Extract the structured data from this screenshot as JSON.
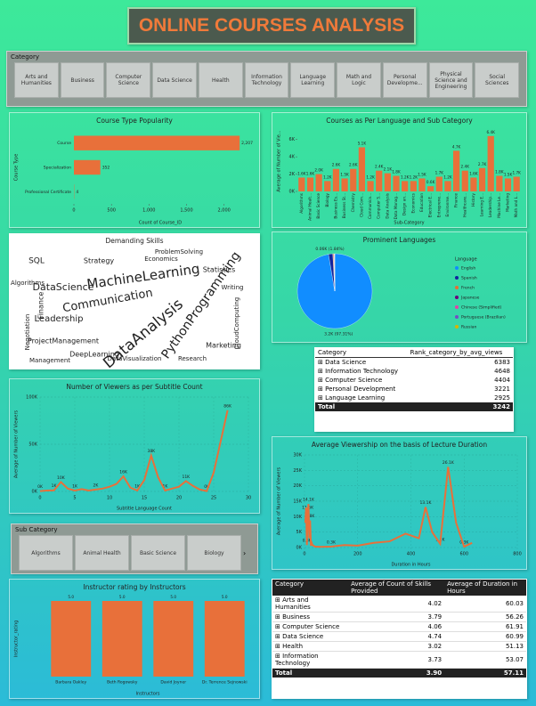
{
  "header": {
    "title": "ONLINE COURSES ANALYSIS"
  },
  "category_slicer": {
    "label": "Category",
    "items": [
      "Arts and Humanities",
      "Business",
      "Computer Science",
      "Data Science",
      "Health",
      "Information Technology",
      "Language Learning",
      "Math and Logic",
      "Personal Developme...",
      "Physical Science and Engineering",
      "Social Sciences"
    ]
  },
  "sub_category_slicer": {
    "label": "Sub Category",
    "items": [
      "Algorithms",
      "Animal Health",
      "Basic Science",
      "Biology"
    ]
  },
  "word_cloud": {
    "title": "Demanding Skills",
    "words": [
      "MachineLearning",
      "DataAnalysis",
      "PythonProgramming",
      "DataScience",
      "Communication",
      "Leadership",
      "ProjectManagement",
      "Statistics",
      "DeepLearning",
      "SQL",
      "Marketing",
      "Finance",
      "Research",
      "Strategy",
      "ProblemSolving",
      "CloudComputing",
      "DataVisualization",
      "Management",
      "Negotiation",
      "Writing",
      "Economics",
      "Algorithms"
    ]
  },
  "chart_data": [
    {
      "type": "bar",
      "orientation": "horizontal",
      "title": "Course Type Popularity",
      "x_label": "Count of Course_ID",
      "y_label": "Course Type",
      "categories": [
        "Course",
        "Specialization",
        "Professional Certificate"
      ],
      "values": [
        2207,
        352,
        4
      ],
      "value_labels": [
        "2,207",
        "352",
        "4"
      ],
      "color": "#e8703a",
      "xlim": [
        0,
        2300
      ],
      "xticks": [
        0,
        500,
        {
          "value": 1000,
          "label": "1,000"
        },
        {
          "value": 1500,
          "label": "1,500"
        },
        {
          "value": 2000,
          "label": "2,000"
        }
      ],
      "grid": false
    },
    {
      "type": "bar",
      "orientation": "vertical",
      "title": "Courses as Per Language and Sub Category",
      "x_label": "Sub-Category",
      "y_label": "Average of Number of Vie...",
      "categories": [
        "Algorithms",
        "Animal Healt...",
        "Basic Science",
        "Biology",
        "Business Es...",
        "Business St...",
        "Chemistry",
        "Cloud Com...",
        "Communica...",
        "Computer S...",
        "Data Analysis",
        "Data Manag...",
        "Design an...",
        "Economics",
        "Education",
        "Electrical E...",
        "Entreprene...",
        "Environme...",
        "Finance",
        "Healthcare...",
        "History",
        "Learning E...",
        "Leadership...",
        "Machine Le...",
        "Marketing",
        "Math and L..."
      ],
      "values": [
        1600,
        1600,
        2000,
        1200,
        2600,
        1500,
        2600,
        5100,
        1200,
        2400,
        2100,
        1800,
        1200,
        1200,
        1500,
        600,
        1700,
        1200,
        4700,
        2400,
        1600,
        2700,
        6400,
        1800,
        1500,
        1700
      ],
      "value_labels": [
        "1.6K",
        "1.6K",
        "2.0K",
        "1.2K",
        "2.6K",
        "1.5K",
        "2.6K",
        "5.1K",
        "1.2K",
        "2.4K",
        "2.1K",
        "1.8K",
        "1.2K",
        "1.2K",
        "1.5K",
        "0.6K",
        "1.7K",
        "1.2K",
        "4.7K",
        "2.4K",
        "1.6K",
        "2.7K",
        "6.4K",
        "1.8K",
        "1.5K",
        "1.7K"
      ],
      "color": "#e8703a",
      "ylim": [
        0,
        7000
      ],
      "yticks": [
        {
          "value": 0,
          "label": "0K"
        },
        {
          "value": 2000,
          "label": "2K"
        },
        {
          "value": 4000,
          "label": "4K"
        },
        {
          "value": 6000,
          "label": "6K"
        }
      ],
      "grid": false
    },
    {
      "type": "pie",
      "title": "Prominent Languages",
      "legend_title": "Language",
      "legend": "right",
      "categories": [
        "English",
        "Spanish",
        "French",
        "Japanese",
        "Chinese (Simplified)",
        "Portuguese (Brazilian)",
        "Russian"
      ],
      "values": [
        3155,
        60,
        12,
        6,
        4,
        3,
        2
      ],
      "value_labels": [
        "3.2K (97.31%)",
        "0.06K (1.84%)",
        null,
        null,
        null,
        null,
        null
      ],
      "colors": [
        "#118dff",
        "#12239e",
        "#e66c37",
        "#6b007b",
        "#e044a7",
        "#744ec2",
        "#d9b300"
      ]
    },
    {
      "type": "line",
      "title": "Number of Viewers as per Subtitle Count",
      "x_label": "Subtitle Language Count",
      "y_label": "Average of Number of Viewers",
      "x": [
        0,
        1,
        2,
        3,
        4,
        5,
        6,
        7,
        8,
        9,
        10,
        11,
        12,
        13,
        14,
        15,
        16,
        17,
        18,
        19,
        20,
        21,
        22,
        23,
        24,
        25,
        27
      ],
      "values": [
        400,
        1000,
        1200,
        10000,
        3000,
        1000,
        2500,
        1000,
        2000,
        3000,
        5000,
        8000,
        16000,
        4000,
        1000,
        12000,
        38000,
        15000,
        1000,
        3000,
        5000,
        11000,
        6000,
        2000,
        400,
        20000,
        86000
      ],
      "value_labels": [
        "0K",
        null,
        "1K",
        "10K",
        null,
        "1K",
        null,
        null,
        "2K",
        null,
        null,
        null,
        "16K",
        null,
        "1K",
        null,
        "38K",
        null,
        "1K",
        null,
        null,
        "11K",
        null,
        null,
        "0K",
        null,
        "86K"
      ],
      "color": "#e8703a",
      "xlim": [
        0,
        30
      ],
      "xticks": [
        0,
        5,
        10,
        15,
        20,
        25,
        30
      ],
      "ylim": [
        0,
        100000
      ],
      "yticks": [
        {
          "value": 0,
          "label": "0K"
        },
        {
          "value": 50000,
          "label": "50K"
        },
        {
          "value": 100000,
          "label": "100K"
        }
      ],
      "grid": true
    },
    {
      "type": "line",
      "title": "Average Viewership on the basis of Lecture Duration",
      "x_label": "Duration in Hours",
      "y_label": "Average of Number of Viewers",
      "x": [
        3,
        6,
        9,
        12,
        15,
        18,
        21,
        24,
        27,
        30,
        40,
        60,
        100,
        150,
        200,
        260,
        320,
        380,
        430,
        455,
        480,
        510,
        540,
        570,
        600,
        630
      ],
      "values": [
        8000,
        13000,
        800,
        11600,
        14100,
        3000,
        8800,
        600,
        1500,
        800,
        300,
        200,
        300,
        800,
        600,
        1500,
        2000,
        4500,
        3000,
        13100,
        5000,
        1200,
        26100,
        8000,
        300,
        1500
      ],
      "value_labels": [
        null,
        null,
        "0.8K",
        "11.6K",
        "14.1K",
        null,
        "8.8K",
        null,
        null,
        null,
        null,
        null,
        "0.3K",
        null,
        null,
        null,
        null,
        null,
        null,
        "13.1K",
        null,
        "1.2K",
        "26.1K",
        null,
        "0.3K",
        null
      ],
      "color": "#e8703a",
      "xlim": [
        0,
        800
      ],
      "xticks": [
        0,
        200,
        400,
        600,
        800
      ],
      "ylim": [
        0,
        30000
      ],
      "yticks": [
        {
          "value": 0,
          "label": "0K"
        },
        {
          "value": 5000,
          "label": "5K"
        },
        {
          "value": 10000,
          "label": "10K"
        },
        {
          "value": 15000,
          "label": "15K"
        },
        {
          "value": 20000,
          "label": "20K"
        },
        {
          "value": 25000,
          "label": "25K"
        },
        {
          "value": 30000,
          "label": "30K"
        }
      ],
      "grid": true
    },
    {
      "type": "bar",
      "orientation": "vertical",
      "title": "Instructor rating by Instructors",
      "x_label": "Instructors",
      "y_label": "Instructor_rating",
      "categories": [
        "Barbara Oakley",
        "Beth Rogowsky",
        "David Joyner",
        "Dr. Terrence Sejnowski"
      ],
      "values": [
        5,
        5,
        5,
        5
      ],
      "value_labels": [
        "5.0",
        "5.0",
        "5.0",
        "5.0"
      ],
      "color": "#e8703a",
      "ylim": [
        0,
        5
      ],
      "grid": false
    }
  ],
  "rank_table": {
    "columns": [
      "Category",
      "Rank_category_by_avg_views"
    ],
    "rows": [
      [
        "Data Science",
        "6383"
      ],
      [
        "Information Technology",
        "4648"
      ],
      [
        "Computer Science",
        "4404"
      ],
      [
        "Personal Development",
        "3221"
      ],
      [
        "Language Learning",
        "2925"
      ]
    ],
    "total": [
      "Total",
      "3242"
    ]
  },
  "skills_table": {
    "columns": [
      "Category",
      "Average of Count of Skills Provided",
      "Average of Duration in Hours"
    ],
    "rows": [
      [
        "Arts and Humanities",
        "4.02",
        "60.03"
      ],
      [
        "Business",
        "3.79",
        "56.26"
      ],
      [
        "Computer Science",
        "4.06",
        "61.91"
      ],
      [
        "Data Science",
        "4.74",
        "60.99"
      ],
      [
        "Health",
        "3.02",
        "51.13"
      ],
      [
        "Information Technology",
        "3.73",
        "53.07"
      ]
    ],
    "total": [
      "Total",
      "3.90",
      "57.11"
    ]
  }
}
